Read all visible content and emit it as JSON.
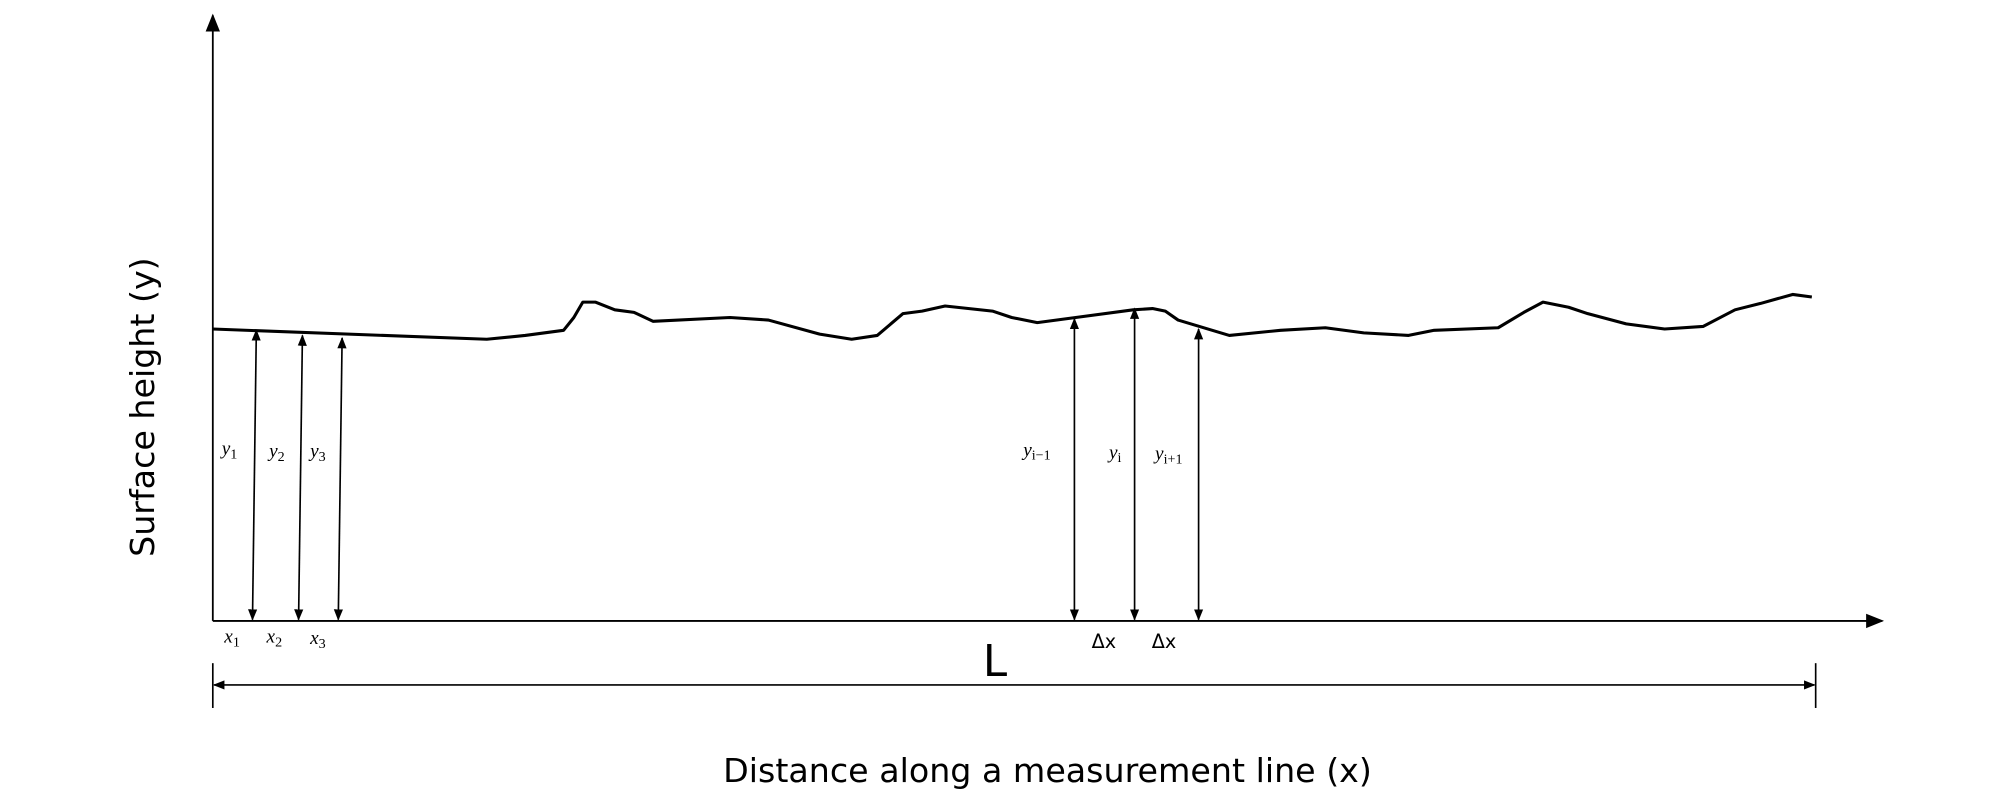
{
  "axes": {
    "x_title": "Distance along a measurement line (x)",
    "y_title": "Surface height (y)"
  },
  "heights": [
    {
      "base": "y",
      "sub": "1"
    },
    {
      "base": "y",
      "sub": "2"
    },
    {
      "base": "y",
      "sub": "3"
    },
    {
      "base": "y",
      "sub": "i−1"
    },
    {
      "base": "y",
      "sub": "i"
    },
    {
      "base": "y",
      "sub": "i+1"
    }
  ],
  "positions": [
    {
      "base": "x",
      "sub": "1"
    },
    {
      "base": "x",
      "sub": "2"
    },
    {
      "base": "x",
      "sub": "3"
    }
  ],
  "spacings": [
    "Δx",
    "Δx"
  ],
  "length": "L"
}
